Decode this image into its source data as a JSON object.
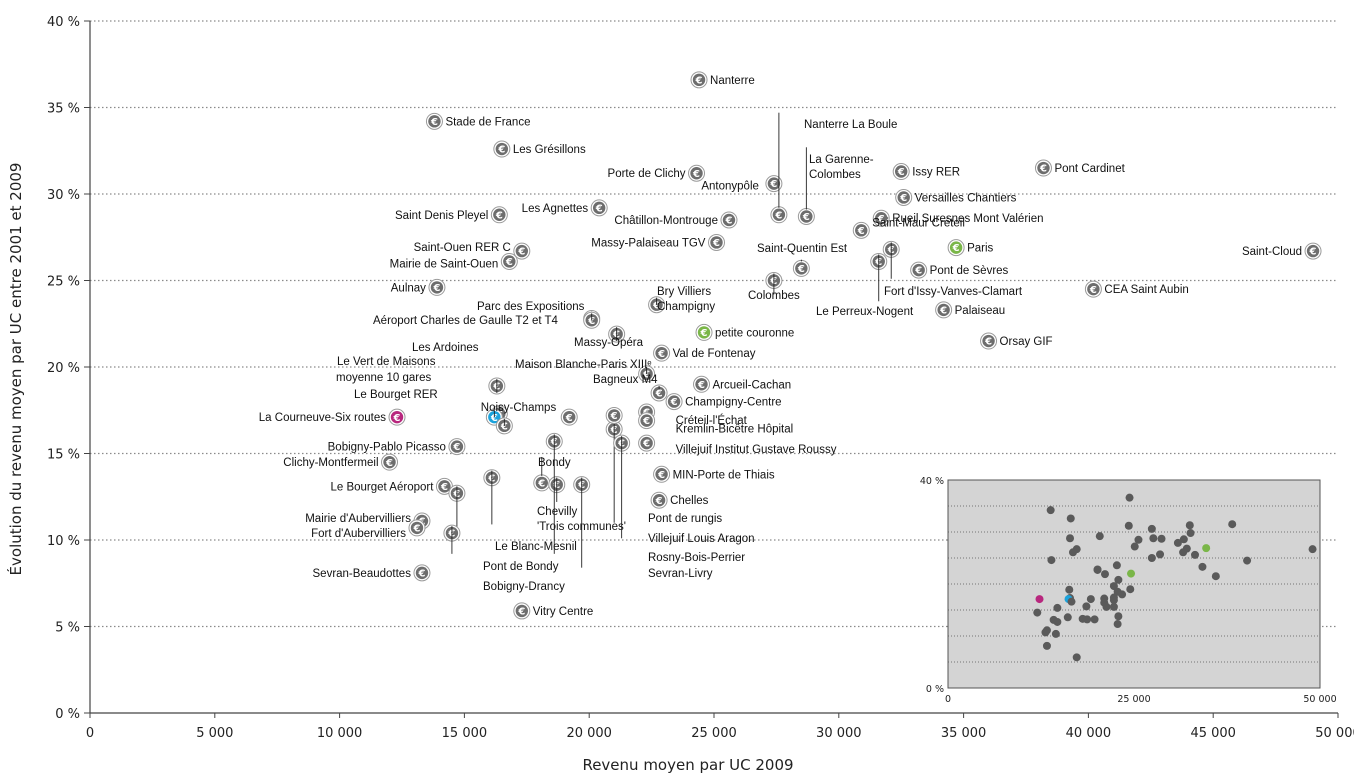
{
  "chart_data": {
    "type": "scatter",
    "xlabel": "Revenu moyen par UC 2009",
    "ylabel": "Évolution du revenu moyen par UC entre 2001 et 2009",
    "xlim": [
      0,
      50000
    ],
    "ylim": [
      0,
      40
    ],
    "x_ticks": [
      "0",
      "5 000",
      "10 000",
      "15 000",
      "20 000",
      "25 000",
      "30 000",
      "35 000",
      "40 000",
      "45 000",
      "50 000"
    ],
    "y_ticks": [
      "0 %",
      "5 %",
      "10 %",
      "15 %",
      "20 %",
      "25 %",
      "30 %",
      "35 %",
      "40 %"
    ],
    "grid": "horizontal dotted",
    "marker_icon": "euro-icon",
    "colors": {
      "default": "#6d6d6d",
      "paris": "#7ab648",
      "petite_couronne": "#7ab648",
      "moyenne": "#1ba3dc",
      "la_courneuve": "#b8277e"
    },
    "points": [
      {
        "label": "Nanterre",
        "x": 24400,
        "y": 36.6,
        "color": "default"
      },
      {
        "label": "Stade de France",
        "x": 13800,
        "y": 34.2,
        "color": "default"
      },
      {
        "label": "Les Grésillons",
        "x": 16500,
        "y": 32.6,
        "color": "default"
      },
      {
        "label": "Porte de Clichy",
        "x": 24300,
        "y": 31.2,
        "color": "default"
      },
      {
        "label": "Antonypôle",
        "x": 27400,
        "y": 30.6,
        "color": "default"
      },
      {
        "label": "Nanterre La Boule",
        "x": 27600,
        "y": 28.8,
        "color": "default"
      },
      {
        "label": "La Garenne-Colombes",
        "x": 28700,
        "y": 28.7,
        "color": "default"
      },
      {
        "label": "Issy RER",
        "x": 32500,
        "y": 31.3,
        "color": "default"
      },
      {
        "label": "Pont Cardinet",
        "x": 38200,
        "y": 31.5,
        "color": "default"
      },
      {
        "label": "Versailles Chantiers",
        "x": 32600,
        "y": 29.8,
        "color": "default"
      },
      {
        "label": "Rueil Suresnes Mont Valérien",
        "x": 31700,
        "y": 28.6,
        "color": "default"
      },
      {
        "label": "Saint-Maur Créteil",
        "x": 30900,
        "y": 27.9,
        "color": "default"
      },
      {
        "label": "Paris",
        "x": 34700,
        "y": 26.9,
        "color": "paris"
      },
      {
        "label": "Saint-Cloud",
        "x": 49000,
        "y": 26.7,
        "color": "default"
      },
      {
        "label": "Saint Denis Pleyel",
        "x": 16400,
        "y": 28.8,
        "color": "default"
      },
      {
        "label": "Les Agnettes",
        "x": 20400,
        "y": 29.2,
        "color": "default"
      },
      {
        "label": "Châtillon-Montrouge",
        "x": 25600,
        "y": 28.5,
        "color": "default"
      },
      {
        "label": "Massy-Palaiseau TGV",
        "x": 25100,
        "y": 27.2,
        "color": "default"
      },
      {
        "label": "Saint-Quentin Est",
        "x": 28500,
        "y": 25.7,
        "color": "default"
      },
      {
        "label": "Saint-Ouen RER C",
        "x": 17300,
        "y": 26.7,
        "color": "default"
      },
      {
        "label": "Mairie de Saint-Ouen",
        "x": 16800,
        "y": 26.1,
        "color": "default"
      },
      {
        "label": "Aulnay",
        "x": 13900,
        "y": 24.6,
        "color": "default"
      },
      {
        "label": "Colombes",
        "x": 27400,
        "y": 25.0,
        "color": "default"
      },
      {
        "label": "Le Perreux-Nogent",
        "x": 31600,
        "y": 26.1,
        "color": "default"
      },
      {
        "label": "Fort d'Issy-Vanves-Clamart",
        "x": 32100,
        "y": 26.8,
        "color": "default"
      },
      {
        "label": "Pont de Sèvres",
        "x": 33200,
        "y": 25.6,
        "color": "default"
      },
      {
        "label": "CEA Saint Aubin",
        "x": 40200,
        "y": 24.5,
        "color": "default"
      },
      {
        "label": "Palaiseau",
        "x": 34200,
        "y": 23.3,
        "color": "default"
      },
      {
        "label": "Orsay GIF",
        "x": 36000,
        "y": 21.5,
        "color": "default"
      },
      {
        "label": "Parc des Expositions",
        "x": 20100,
        "y": 22.8,
        "color": "default"
      },
      {
        "label": "Aéroport Charles de Gaulle T2 et T4",
        "x": 20100,
        "y": 22.7,
        "color": "default"
      },
      {
        "label": "Bry Villiers Champigny",
        "x": 22700,
        "y": 23.6,
        "color": "default"
      },
      {
        "label": "petite couronne",
        "x": 24600,
        "y": 22.0,
        "color": "petite_couronne"
      },
      {
        "label": "Massy-Opéra",
        "x": 21100,
        "y": 21.9,
        "color": "default"
      },
      {
        "label": "Val de Fontenay",
        "x": 22900,
        "y": 20.8,
        "color": "default"
      },
      {
        "label": "Maison Blanche-Paris XIIIe",
        "x": 22300,
        "y": 19.6,
        "color": "default"
      },
      {
        "label": "Arcueil-Cachan",
        "x": 24500,
        "y": 19.0,
        "color": "default"
      },
      {
        "label": "Bagneux M4",
        "x": 22800,
        "y": 18.5,
        "color": "default"
      },
      {
        "label": "Champigny-Centre",
        "x": 23400,
        "y": 18.0,
        "color": "default"
      },
      {
        "label": "Les Ardoines",
        "x": 16300,
        "y": 18.9,
        "color": "default"
      },
      {
        "label": "Le Vert de Maisons",
        "x": 16400,
        "y": 17.3,
        "color": "default"
      },
      {
        "label": "moyenne 10 gares",
        "x": 16200,
        "y": 17.1,
        "color": "moyenne"
      },
      {
        "label": "Le Bourget RER",
        "x": 16600,
        "y": 16.6,
        "color": "default"
      },
      {
        "label": "La Courneuve-Six routes",
        "x": 12300,
        "y": 17.1,
        "color": "la_courneuve"
      },
      {
        "label": "Noisy-Champs",
        "x": 19200,
        "y": 17.1,
        "color": "default"
      },
      {
        "label": "Créteil-l'Échat",
        "x": 22300,
        "y": 17.4,
        "color": "default"
      },
      {
        "label": "Kremlin-Bicêtre Hôpital",
        "x": 22300,
        "y": 16.9,
        "color": "default"
      },
      {
        "label": "Villejuif Institut Gustave Roussy",
        "x": 22300,
        "y": 15.6,
        "color": "default"
      },
      {
        "label": "Bobigny-Pablo Picasso",
        "x": 14700,
        "y": 15.4,
        "color": "default"
      },
      {
        "label": "Clichy-Montfermeil",
        "x": 12000,
        "y": 14.5,
        "color": "default"
      },
      {
        "label": "MIN-Porte de Thiais",
        "x": 22900,
        "y": 13.8,
        "color": "default"
      },
      {
        "label": "Bondy",
        "x": 18100,
        "y": 13.3,
        "color": "default"
      },
      {
        "label": "Chevilly 'Trois communes'",
        "x": 18700,
        "y": 13.2,
        "color": "default"
      },
      {
        "label": "Le Bourget Aéroport",
        "x": 14200,
        "y": 13.1,
        "color": "default"
      },
      {
        "label": "Chelles",
        "x": 22800,
        "y": 12.3,
        "color": "default"
      },
      {
        "label": "Mairie d'Aubervilliers",
        "x": 13300,
        "y": 11.1,
        "color": "default"
      },
      {
        "label": "Fort d'Aubervilliers",
        "x": 13100,
        "y": 10.7,
        "color": "default"
      },
      {
        "label": "Sevran-Beaudottes",
        "x": 13300,
        "y": 8.1,
        "color": "default"
      },
      {
        "label": "Vitry Centre",
        "x": 17300,
        "y": 5.9,
        "color": "default"
      },
      {
        "label": "Le Blanc-Mesnil",
        "x": 16100,
        "y": 13.6,
        "color": "default"
      },
      {
        "label": "Pont de Bondy",
        "x": 14700,
        "y": 12.7,
        "color": "default"
      },
      {
        "label": "Bobigny-Drancy",
        "x": 14500,
        "y": 10.4,
        "color": "default"
      },
      {
        "label": "Pont de rungis",
        "x": 21000,
        "y": 16.4,
        "color": "default"
      },
      {
        "label": "Villejuif Louis Aragon",
        "x": 21300,
        "y": 15.6,
        "color": "default"
      },
      {
        "label": "Rosny-Bois-Perrier",
        "x": 18600,
        "y": 15.7,
        "color": "default"
      },
      {
        "label": "Sevran-Livry",
        "x": 19700,
        "y": 13.2,
        "color": "default"
      },
      {
        "label": "Noisy-Champs (bas)",
        "x": 21000,
        "y": 17.2,
        "color": "default"
      }
    ],
    "inset": {
      "type": "scatter",
      "xlim": [
        0,
        50000
      ],
      "ylim": [
        0,
        40
      ],
      "x_ticks": [
        "0",
        "25 000",
        "50 000"
      ],
      "y_ticks": [
        "0 %",
        "40 %"
      ],
      "background": "#d4d4d4"
    }
  }
}
